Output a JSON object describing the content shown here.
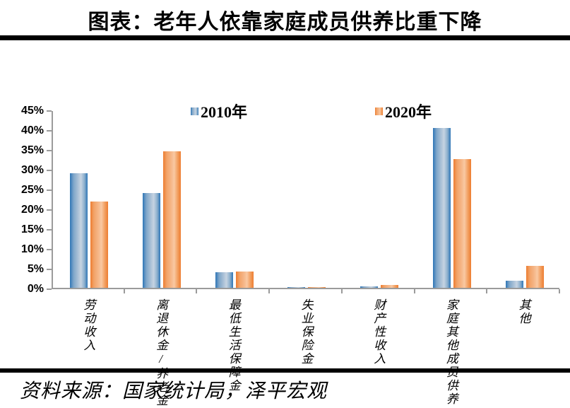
{
  "title": "图表：老年人依靠家庭成员供养比重下降",
  "source": "资料来源：国家统计局，泽平宏观",
  "colors": {
    "series_2010": "#2E75B6",
    "series_2020": "#ED7D31",
    "axis": "#9B9B9B",
    "rule": "#000000"
  },
  "chart_data": {
    "type": "bar",
    "title": "图表：老年人依靠家庭成员供养比重下降",
    "categories": [
      "劳动收入",
      "离退休金/养老金",
      "最低生活保障金",
      "失业保险金",
      "财产性收入",
      "家庭其他成员供养",
      "其他"
    ],
    "series": [
      {
        "name": "2010年",
        "color": "#2E75B6",
        "values": [
          29.1,
          24.1,
          3.9,
          0.1,
          0.4,
          40.7,
          1.8
        ]
      },
      {
        "name": "2020年",
        "color": "#ED7D31",
        "values": [
          21.9,
          34.7,
          4.2,
          0.1,
          0.8,
          32.7,
          5.5
        ]
      }
    ],
    "xlabel": "",
    "ylabel": "",
    "ylim": [
      0,
      45
    ],
    "ytick_step": 5,
    "ytick_labels": [
      "0%",
      "5%",
      "10%",
      "15%",
      "20%",
      "25%",
      "30%",
      "35%",
      "40%",
      "45%"
    ],
    "grid": false,
    "legend_position": "top"
  }
}
